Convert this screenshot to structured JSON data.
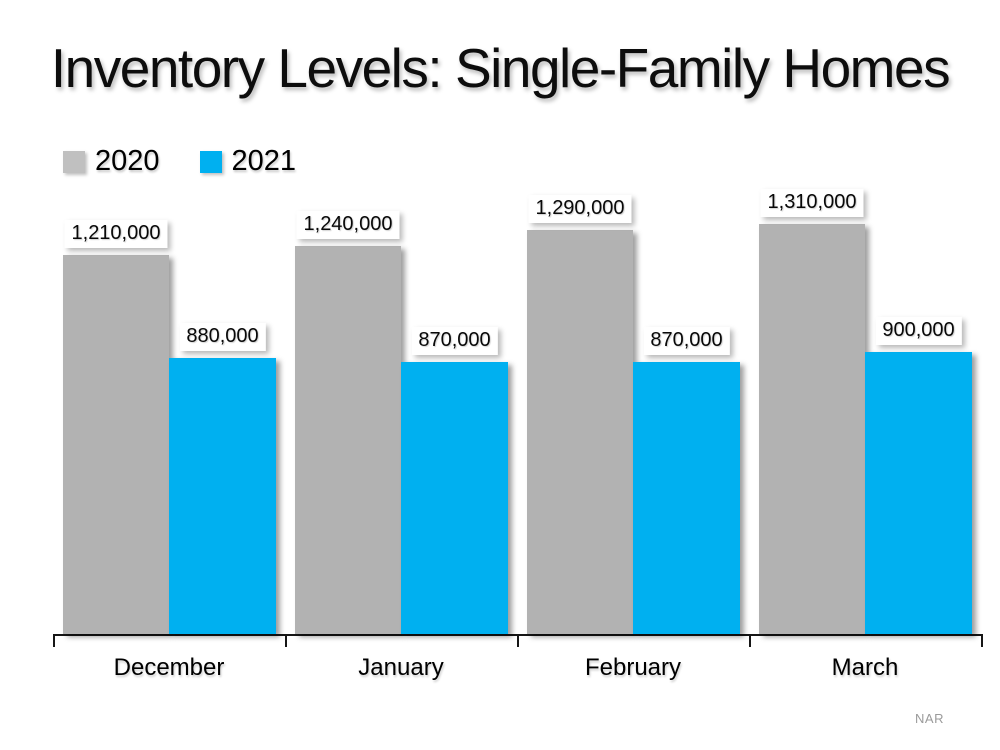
{
  "title": "Inventory Levels: Single-Family Homes",
  "source": "NAR",
  "colors": {
    "background": "#ffffff",
    "series_2020": "#c0c0c0",
    "series_2021": "#00b0f0",
    "bar_2020": "#b2b2b2",
    "bar_2021": "#00b0f0",
    "axis": "#161616",
    "label_text": "#080808",
    "source_text": "#9b9b9b"
  },
  "chart_data": {
    "type": "bar",
    "title": "Inventory Levels: Single-Family Homes",
    "categories": [
      "December",
      "January",
      "February",
      "March"
    ],
    "series": [
      {
        "name": "2020",
        "values": [
          1210000,
          1240000,
          1290000,
          1310000
        ]
      },
      {
        "name": "2021",
        "values": [
          880000,
          870000,
          870000,
          900000
        ]
      }
    ],
    "value_labels": [
      [
        "1,210,000",
        "1,240,000",
        "1,290,000",
        "1,310,000"
      ],
      [
        "880,000",
        "870,000",
        "870,000",
        "900,000"
      ]
    ],
    "xlabel": "",
    "ylabel": "",
    "ylim": [
      0,
      1450000
    ],
    "grid": false,
    "value_axis_visible": false,
    "legend_position": "top-left",
    "annotation": "NAR"
  }
}
